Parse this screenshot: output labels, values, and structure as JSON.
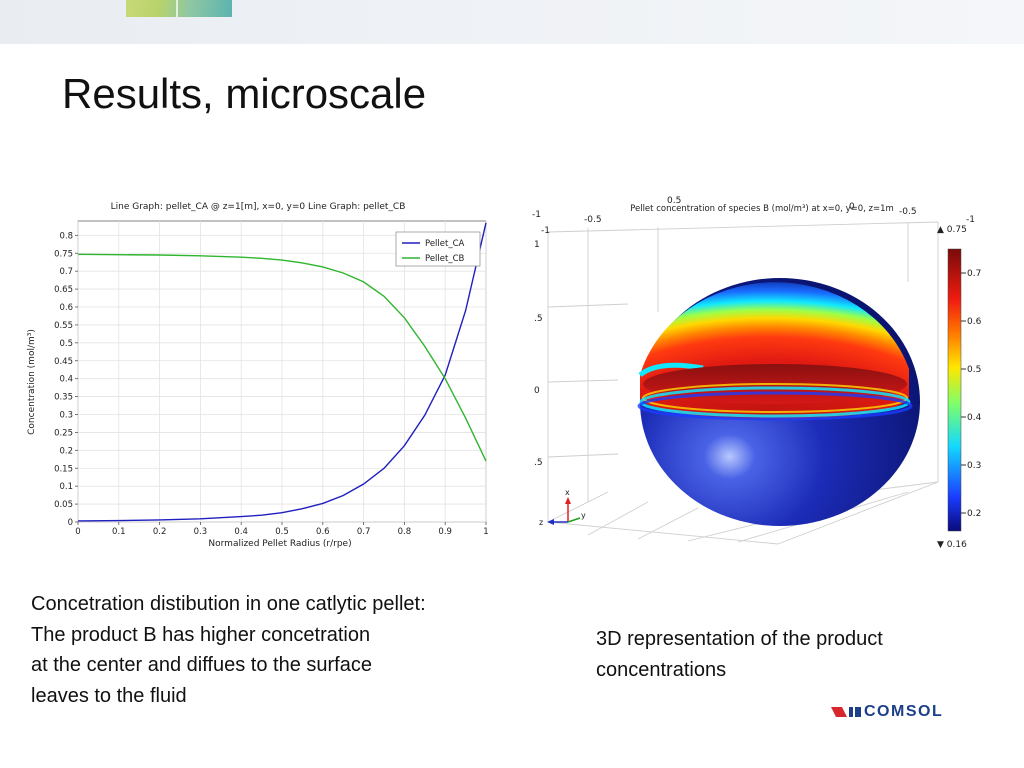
{
  "slide": {
    "title": "Results, microscale",
    "caption_left": [
      "Concetration distibution in one catlytic pellet:",
      "The product B has higher concetration",
      "at the center and diffues to the surface",
      "leaves to the fluid"
    ],
    "caption_right": [
      "3D representation of the product",
      "concentrations"
    ],
    "logo_text": "COMSOL",
    "colors": {
      "logo_red": "#d8262e",
      "logo_blue": "#1b3f88"
    }
  },
  "chart_data": [
    {
      "type": "line",
      "title": "Line Graph: pellet_CA @ z=1[m], x=0, y=0  Line Graph: pellet_CB",
      "xlabel": "Normalized Pellet Radius (r/rpe)",
      "ylabel": "Concentration (mol/m³)",
      "xlim": [
        0,
        1
      ],
      "ylim": [
        0,
        0.84
      ],
      "xticks": [
        "0",
        "0.1",
        "0.2",
        "0.3",
        "0.4",
        "0.5",
        "0.6",
        "0.7",
        "0.8",
        "0.9",
        "1"
      ],
      "yticks": [
        "0",
        "0.05",
        "0.1",
        "0.15",
        "0.2",
        "0.25",
        "0.3",
        "0.35",
        "0.4",
        "0.45",
        "0.5",
        "0.55",
        "0.6",
        "0.65",
        "0.7",
        "0.75",
        "0.8"
      ],
      "grid": true,
      "legend_position": "top-right",
      "series": [
        {
          "name": "Pellet_CA",
          "color": "#1f1fbf",
          "x": [
            0,
            0.1,
            0.2,
            0.3,
            0.4,
            0.45,
            0.5,
            0.55,
            0.6,
            0.65,
            0.7,
            0.75,
            0.8,
            0.85,
            0.9,
            0.95,
            1.0
          ],
          "y": [
            0.003,
            0.004,
            0.006,
            0.009,
            0.015,
            0.019,
            0.026,
            0.037,
            0.052,
            0.074,
            0.106,
            0.15,
            0.213,
            0.298,
            0.41,
            0.59,
            0.835
          ]
        },
        {
          "name": "Pellet_CB",
          "color": "#2fb52f",
          "x": [
            0,
            0.1,
            0.2,
            0.3,
            0.4,
            0.45,
            0.5,
            0.55,
            0.6,
            0.65,
            0.7,
            0.75,
            0.8,
            0.85,
            0.9,
            0.95,
            1.0
          ],
          "y": [
            0.747,
            0.746,
            0.745,
            0.743,
            0.739,
            0.736,
            0.731,
            0.723,
            0.712,
            0.695,
            0.67,
            0.63,
            0.57,
            0.49,
            0.4,
            0.29,
            0.17
          ]
        }
      ]
    },
    {
      "type": "heatmap",
      "title": "Pellet concentration of species B (mol/m³) at x=0, y=0, z=1m",
      "colorbar": {
        "max_label": "▲ 0.75",
        "min_label": "▼ 0.16",
        "ticks": [
          "0.7",
          "0.6",
          "0.5",
          "0.4",
          "0.3",
          "0.2"
        ]
      },
      "axis_labels": {
        "top": [
          "-0.5",
          "0.5",
          "-1",
          "0",
          "-0.5",
          "-1"
        ],
        "left": [
          "-1",
          "1",
          ".5",
          "0",
          ".5"
        ]
      },
      "triad": [
        "x",
        "y",
        "z"
      ]
    }
  ]
}
